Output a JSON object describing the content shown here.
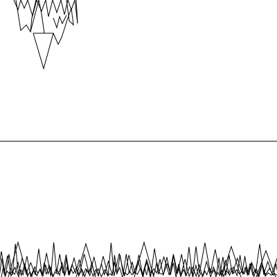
{
  "scene": {
    "type": "line-art-spike-field",
    "background_color": "#ffffff",
    "stroke_color": "#000000",
    "elements": [
      "hanging-spike-cluster",
      "horizon-line",
      "ground-spike-row"
    ]
  }
}
